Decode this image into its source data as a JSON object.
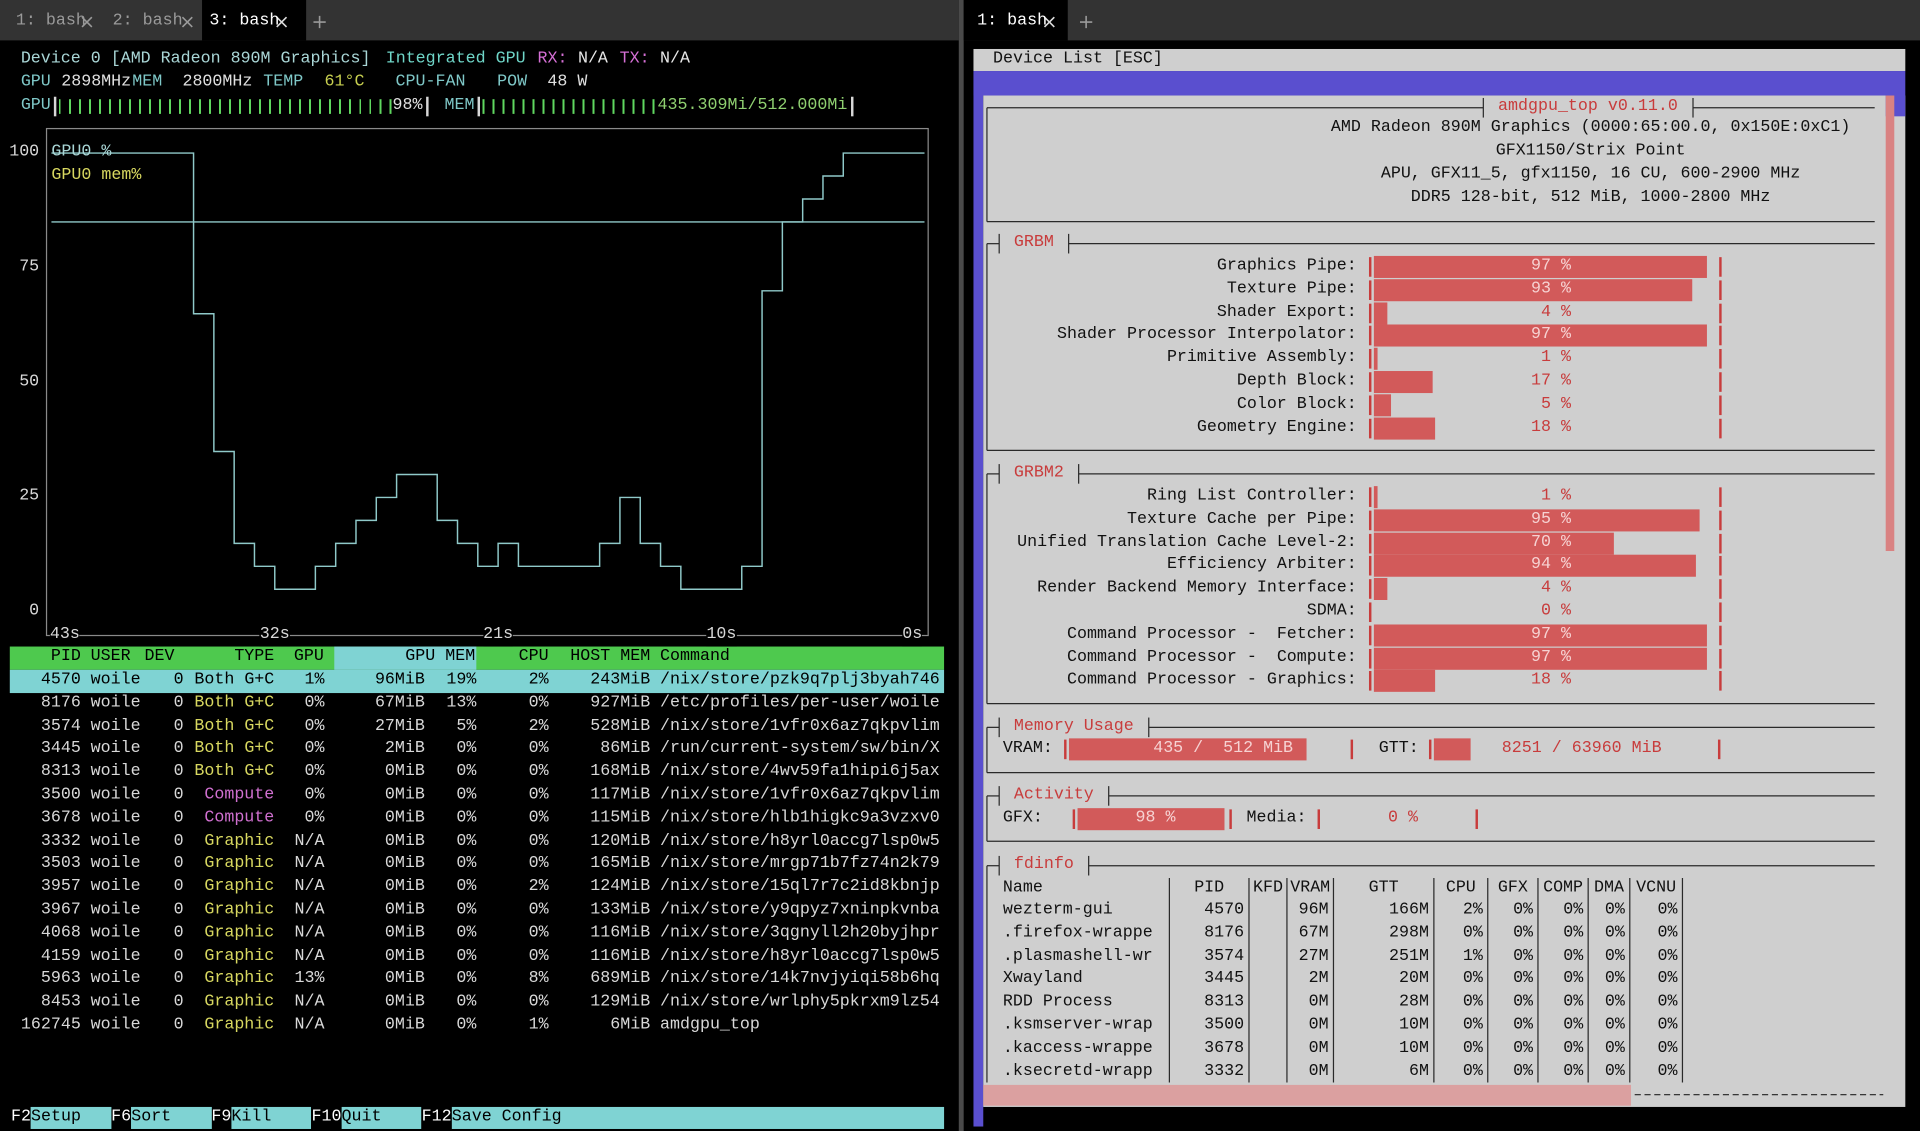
{
  "tabs": {
    "left": [
      "1: bash",
      "2: bash",
      "3: bash"
    ],
    "left_active": 2,
    "right": [
      "1: bash"
    ],
    "right_active": 0
  },
  "nvtop": {
    "device": [
      {
        "text": "Device 0 [AMD Radeon 890M Graphics]",
        "color": "#a9d6d6"
      },
      {
        "text": "Integrated GPU",
        "color": "#6fd6c8"
      },
      {
        "text": "RX:",
        "color": "#d56fd5"
      },
      {
        "text": "N/A",
        "color": "#e8e8e8"
      },
      {
        "text": "TX:",
        "color": "#d56fd5"
      },
      {
        "text": "N/A",
        "color": "#e8e8e8"
      }
    ],
    "status": [
      {
        "text": "GPU",
        "color": "#7fc8c8"
      },
      {
        "text": "2898MHz",
        "color": "#e0e0e0"
      },
      {
        "text": "MEM",
        "color": "#7fc8c8"
      },
      {
        "text": "2800MHz",
        "color": "#e0e0e0"
      },
      {
        "text": "TEMP",
        "color": "#7fc8c8"
      },
      {
        "text": "61°C",
        "color": "#c8d050"
      },
      {
        "text": "CPU-FAN",
        "color": "#7fc8c8"
      },
      {
        "text": "POW",
        "color": "#7fc8c8"
      },
      {
        "text": "48 W",
        "color": "#e0e0e0"
      }
    ],
    "gpu_gauge": {
      "label": "GPU",
      "value": 98,
      "max": 100,
      "value_label": "98%"
    },
    "mem_gauge": {
      "label": "MEM",
      "value": 435.309,
      "max": 512.0,
      "value_label": "435.309Mi/512.000Mi"
    },
    "plot": {
      "type": "line",
      "xlim": [
        43,
        0
      ],
      "xticks": [
        {
          "value": 43,
          "label": "43s"
        },
        {
          "value": 32,
          "label": "32s"
        },
        {
          "value": 21,
          "label": "21s"
        },
        {
          "value": 10,
          "label": "10s"
        },
        {
          "value": 0,
          "label": "0s"
        }
      ],
      "ylim": [
        0,
        100
      ],
      "yticks": [
        100,
        75,
        50,
        25,
        0
      ],
      "x": [
        43,
        42,
        41,
        40,
        39,
        38,
        37,
        36,
        35,
        34,
        33,
        32,
        31,
        30,
        29,
        28,
        27,
        26,
        25,
        24,
        23,
        22,
        21,
        20,
        19,
        18,
        17,
        16,
        15,
        14,
        13,
        12,
        11,
        10,
        9,
        8,
        7,
        6,
        5,
        4,
        3,
        2,
        1
      ],
      "series": [
        {
          "name": "GPU0 %",
          "color": "#8fc9c9",
          "legend_color": "#a9d6d6",
          "values": [
            100,
            100,
            100,
            100,
            100,
            100,
            100,
            65,
            35,
            15,
            10,
            5,
            5,
            10,
            15,
            20,
            25,
            30,
            30,
            20,
            15,
            10,
            15,
            10,
            10,
            10,
            10,
            15,
            25,
            15,
            10,
            5,
            5,
            5,
            10,
            70,
            85,
            90,
            95,
            100,
            100,
            100,
            100
          ]
        },
        {
          "name": "GPU0 mem%",
          "color": "#8fc9c9",
          "legend_color": "#d8d860",
          "values": [
            85,
            85,
            85,
            85,
            85,
            85,
            85,
            85,
            85,
            85,
            85,
            85,
            85,
            85,
            85,
            85,
            85,
            85,
            85,
            85,
            85,
            85,
            85,
            85,
            85,
            85,
            85,
            85,
            85,
            85,
            85,
            85,
            85,
            85,
            85,
            85,
            85,
            85,
            85,
            85,
            85,
            85,
            85
          ]
        }
      ]
    },
    "processes": {
      "columns": [
        "PID",
        "USER",
        "DEV",
        "TYPE",
        "GPU",
        "GPU MEM",
        "CPU",
        "HOST MEM",
        "Command"
      ],
      "selected": 0,
      "type_colors": {
        "Both G+C": "#d8d860",
        "Compute": "#d070d0",
        "Graphic": "#d8d860"
      },
      "rows": [
        [
          "4570",
          "woile",
          "0",
          "Both G+C",
          "1%",
          "96MiB",
          "19%",
          "2%",
          "243MiB",
          "/nix/store/pzk9q7plj3byah746"
        ],
        [
          "8176",
          "woile",
          "0",
          "Both G+C",
          "0%",
          "67MiB",
          "13%",
          "0%",
          "927MiB",
          "/etc/profiles/per-user/woile"
        ],
        [
          "3574",
          "woile",
          "0",
          "Both G+C",
          "0%",
          "27MiB",
          "5%",
          "2%",
          "528MiB",
          "/nix/store/1vfr0x6az7qkpvlim"
        ],
        [
          "3445",
          "woile",
          "0",
          "Both G+C",
          "0%",
          "2MiB",
          "0%",
          "0%",
          "86MiB",
          "/run/current-system/sw/bin/X"
        ],
        [
          "8313",
          "woile",
          "0",
          "Both G+C",
          "0%",
          "0MiB",
          "0%",
          "0%",
          "168MiB",
          "/nix/store/4wv59fa1hipi6j5ax"
        ],
        [
          "3500",
          "woile",
          "0",
          "Compute",
          "0%",
          "0MiB",
          "0%",
          "0%",
          "117MiB",
          "/nix/store/1vfr0x6az7qkpvlim"
        ],
        [
          "3678",
          "woile",
          "0",
          "Compute",
          "0%",
          "0MiB",
          "0%",
          "0%",
          "115MiB",
          "/nix/store/hlb1higkc9a3vzxv0"
        ],
        [
          "3332",
          "woile",
          "0",
          "Graphic",
          "N/A",
          "0MiB",
          "0%",
          "0%",
          "120MiB",
          "/nix/store/h8yrl0accg7lsp0w5"
        ],
        [
          "3503",
          "woile",
          "0",
          "Graphic",
          "N/A",
          "0MiB",
          "0%",
          "0%",
          "165MiB",
          "/nix/store/mrgp71b7fz74n2k79"
        ],
        [
          "3957",
          "woile",
          "0",
          "Graphic",
          "N/A",
          "0MiB",
          "0%",
          "2%",
          "124MiB",
          "/nix/store/15ql7r7c2id8kbnjp"
        ],
        [
          "3967",
          "woile",
          "0",
          "Graphic",
          "N/A",
          "0MiB",
          "0%",
          "0%",
          "133MiB",
          "/nix/store/y9qpyz7xninpkvnba"
        ],
        [
          "4068",
          "woile",
          "0",
          "Graphic",
          "N/A",
          "0MiB",
          "0%",
          "0%",
          "116MiB",
          "/nix/store/3qgnyll2h20byjhpr"
        ],
        [
          "4159",
          "woile",
          "0",
          "Graphic",
          "N/A",
          "0MiB",
          "0%",
          "0%",
          "116MiB",
          "/nix/store/h8yrl0accg7lsp0w5"
        ],
        [
          "5963",
          "woile",
          "0",
          "Graphic",
          "13%",
          "0MiB",
          "0%",
          "8%",
          "689MiB",
          "/nix/store/14k7nvjyiqi58b6hq"
        ],
        [
          "8453",
          "woile",
          "0",
          "Graphic",
          "N/A",
          "0MiB",
          "0%",
          "0%",
          "129MiB",
          "/nix/store/wrlphy5pkrxm9lz54"
        ],
        [
          "162745",
          "woile",
          "0",
          "Graphic",
          "N/A",
          "0MiB",
          "0%",
          "1%",
          "6MiB",
          "amdgpu_top"
        ]
      ]
    },
    "footer": [
      {
        "key": "F2",
        "label": "Setup"
      },
      {
        "key": "F6",
        "label": "Sort"
      },
      {
        "key": "F9",
        "label": "Kill"
      },
      {
        "key": "F10",
        "label": "Quit"
      },
      {
        "key": "F12",
        "label": "Save Config"
      }
    ]
  },
  "amdgpu": {
    "menu": "Device List [ESC]",
    "title": "amdgpu_top v0.11.0",
    "bar_color": "#d25a5a",
    "text_color": "#c83c3c",
    "info": [
      "AMD Radeon 890M Graphics (0000:65:00.0, 0x150E:0xC1)",
      "GFX1150/Strix Point",
      "APU, GFX11_5, gfx1150, 16 CU, 600-2900 MHz",
      "DDR5 128-bit, 512 MiB, 1000-2800 MHz"
    ],
    "sections": [
      {
        "title": "GRBM",
        "rows": [
          {
            "label": "Graphics Pipe:",
            "value": 97,
            "value_label": "97 %"
          },
          {
            "label": "Texture Pipe:",
            "value": 93,
            "value_label": "93 %"
          },
          {
            "label": "Shader Export:",
            "value": 4,
            "value_label": "4 %"
          },
          {
            "label": "Shader Processor Interpolator:",
            "value": 97,
            "value_label": "97 %"
          },
          {
            "label": "Primitive Assembly:",
            "value": 1,
            "value_label": "1 %"
          },
          {
            "label": "Depth Block:",
            "value": 17,
            "value_label": "17 %"
          },
          {
            "label": "Color Block:",
            "value": 5,
            "value_label": "5 %"
          },
          {
            "label": "Geometry Engine:",
            "value": 18,
            "value_label": "18 %"
          }
        ]
      },
      {
        "title": "GRBM2",
        "rows": [
          {
            "label": "Ring List Controller:",
            "value": 1,
            "value_label": "1 %"
          },
          {
            "label": "Texture Cache per Pipe:",
            "value": 95,
            "value_label": "95 %"
          },
          {
            "label": "Unified Translation Cache Level-2:",
            "value": 70,
            "value_label": "70 %"
          },
          {
            "label": "Efficiency Arbiter:",
            "value": 94,
            "value_label": "94 %"
          },
          {
            "label": "Render Backend Memory Interface:",
            "value": 4,
            "value_label": "4 %"
          },
          {
            "label": "SDMA:",
            "value": 0,
            "value_label": "0 %"
          },
          {
            "label": "Command Processor -  Fetcher:",
            "value": 97,
            "value_label": "97 %"
          },
          {
            "label": "Command Processor -  Compute:",
            "value": 97,
            "value_label": "97 %"
          },
          {
            "label": "Command Processor - Graphics:",
            "value": 18,
            "value_label": "18 %"
          }
        ]
      }
    ],
    "memory": {
      "title": "Memory Usage",
      "vram": {
        "label": "VRAM:",
        "used": 435,
        "total": 512,
        "value_label": "435 /  512 MiB"
      },
      "gtt": {
        "label": "GTT:",
        "used": 8251,
        "total": 63960,
        "value_label": "8251 / 63960 MiB"
      }
    },
    "activity": {
      "title": "Activity",
      "gfx": {
        "label": "GFX:",
        "value": 98,
        "value_label": "98 %"
      },
      "media": {
        "label": "Media:",
        "value": 0,
        "value_label": "0 %"
      }
    },
    "fdinfo": {
      "title": "fdinfo",
      "columns": [
        "Name",
        "PID",
        "KFD",
        "VRAM",
        "GTT",
        "CPU",
        "GFX",
        "COMP",
        "DMA",
        "VCNU"
      ],
      "rows": [
        [
          "wezterm-gui",
          "4570",
          null,
          "96M",
          "166M",
          "2%",
          "0%",
          "0%",
          "0%",
          "0%"
        ],
        [
          ".firefox-wrappe",
          "8176",
          null,
          "67M",
          "298M",
          "0%",
          "0%",
          "0%",
          "0%",
          "0%"
        ],
        [
          ".plasmashell-wr",
          "3574",
          null,
          "27M",
          "251M",
          "1%",
          "0%",
          "0%",
          "0%",
          "0%"
        ],
        [
          "Xwayland",
          "3445",
          null,
          "2M",
          "20M",
          "0%",
          "0%",
          "0%",
          "0%",
          "0%"
        ],
        [
          "RDD Process",
          "8313",
          null,
          "0M",
          "28M",
          "0%",
          "0%",
          "0%",
          "0%",
          "0%"
        ],
        [
          ".ksmserver-wrap",
          "3500",
          null,
          "0M",
          "10M",
          "0%",
          "0%",
          "0%",
          "0%",
          "0%"
        ],
        [
          ".kaccess-wrappe",
          "3678",
          null,
          "0M",
          "10M",
          "0%",
          "0%",
          "0%",
          "0%",
          "0%"
        ],
        [
          ".ksecretd-wrapp",
          "3332",
          null,
          "0M",
          "6M",
          "0%",
          "0%",
          "0%",
          "0%",
          "0%"
        ]
      ]
    }
  }
}
